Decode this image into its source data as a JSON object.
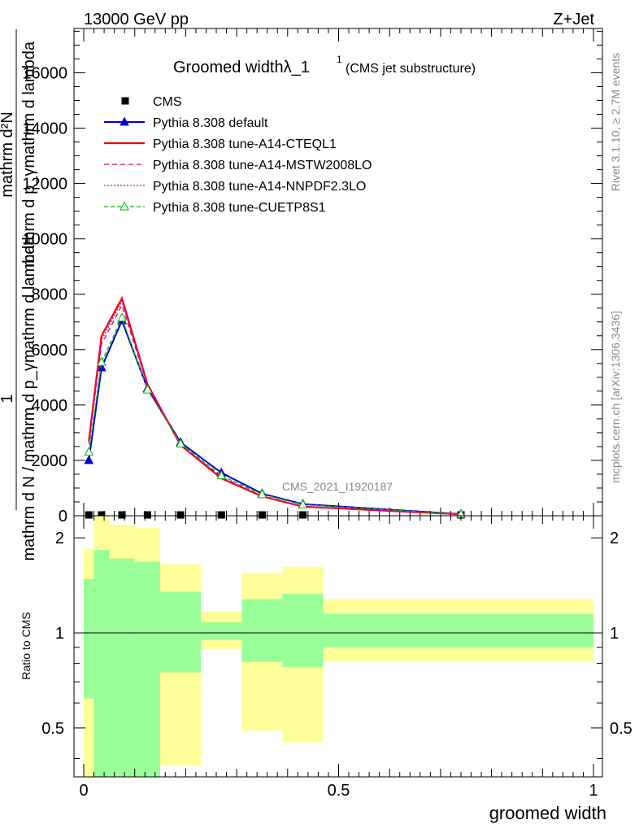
{
  "header": {
    "left_label": "13000 GeV pp",
    "right_label": "Z+Jet"
  },
  "side_labels": {
    "rivet": "Rivet 3.1.10, ≥ 2.7M events",
    "mcplots": "mcplots.cern.ch [arXiv:1306.3436]"
  },
  "chart_data": [
    {
      "type": "line",
      "title": "Groomed widthλ_1",
      "title_sup": "1",
      "subtitle": "(CMS jet substructure)",
      "watermark": "CMS_2021_I1920187",
      "ylabel_top": "mathrm d²N",
      "ylabel_mid": "mathrm d p_γmathrm d lambda",
      "ylabel_one": "1",
      "ylabel_bottom": "mathrm d N / mathrm d p_γmathrm d lambda",
      "xlim": [
        0,
        1
      ],
      "ylim": [
        0,
        17600
      ],
      "yticks": [
        0,
        2000,
        4000,
        6000,
        8000,
        10000,
        12000,
        14000,
        16000
      ],
      "ytick_labels": [
        "0",
        "2000",
        "4000",
        "6000",
        "8000",
        "10000",
        "12000",
        "14000",
        "16000"
      ],
      "legend_position": "top-left",
      "x": [
        0.01,
        0.035,
        0.075,
        0.125,
        0.19,
        0.27,
        0.35,
        0.43,
        0.74
      ],
      "series": [
        {
          "name": "CMS",
          "color": "#000000",
          "marker": "square",
          "dash": "none",
          "values": [
            20,
            20,
            20,
            20,
            20,
            20,
            20,
            20,
            20
          ]
        },
        {
          "name": "Pythia 8.308 default",
          "color": "#0000cc",
          "marker": "triangle-filled",
          "dash": "none",
          "values": [
            2000,
            5350,
            7050,
            4600,
            2650,
            1550,
            800,
            420,
            60
          ]
        },
        {
          "name": "Pythia 8.308 tune-A14-CTEQL1",
          "color": "#ee0000",
          "marker": "none",
          "dash": "none",
          "values": [
            2700,
            6500,
            7850,
            4750,
            2550,
            1350,
            700,
            330,
            50
          ]
        },
        {
          "name": "Pythia 8.308 tune-A14-MSTW2008LO",
          "color": "#ee0066",
          "marker": "none",
          "dash": "6,4",
          "values": [
            2600,
            6200,
            7600,
            4700,
            2580,
            1400,
            720,
            340,
            50
          ]
        },
        {
          "name": "Pythia 8.308 tune-A14-NNPDF2.3LO",
          "color": "#dd00aa",
          "marker": "none",
          "dash": "2,2",
          "values": [
            2650,
            6350,
            7750,
            4720,
            2560,
            1380,
            710,
            335,
            50
          ]
        },
        {
          "name": "Pythia 8.308 tune-CUETP8S1",
          "color": "#00bb00",
          "marker": "triangle-open",
          "dash": "5,3",
          "values": [
            2300,
            5550,
            7150,
            4550,
            2600,
            1450,
            770,
            400,
            55
          ]
        }
      ]
    },
    {
      "type": "area",
      "ylabel": "Ratio to CMS",
      "xlabel": "groomed width",
      "xlim": [
        0,
        1
      ],
      "ylim": [
        0.35,
        2.35
      ],
      "log_y": true,
      "xticks": [
        0,
        0.5,
        1
      ],
      "xtick_labels": [
        "0",
        "0.5",
        "1"
      ],
      "yticks": [
        0.5,
        1,
        2
      ],
      "ytick_labels": [
        "0.5",
        "1",
        "2"
      ],
      "reference_line": 1,
      "bands": [
        {
          "x0": 0.0,
          "x1": 0.02,
          "yellow": [
            0.35,
            1.85
          ],
          "green": [
            0.62,
            1.48
          ]
        },
        {
          "x0": 0.02,
          "x1": 0.05,
          "yellow": [
            0.35,
            2.35
          ],
          "green": [
            0.35,
            1.83
          ]
        },
        {
          "x0": 0.05,
          "x1": 0.1,
          "yellow": [
            0.35,
            2.2
          ],
          "green": [
            0.35,
            1.72
          ]
        },
        {
          "x0": 0.1,
          "x1": 0.15,
          "yellow": [
            0.35,
            2.15
          ],
          "green": [
            0.35,
            1.68
          ]
        },
        {
          "x0": 0.15,
          "x1": 0.23,
          "yellow": [
            0.38,
            1.65
          ],
          "green": [
            0.75,
            1.35
          ]
        },
        {
          "x0": 0.23,
          "x1": 0.31,
          "yellow": [
            0.89,
            1.17
          ],
          "green": [
            0.95,
            1.08
          ]
        },
        {
          "x0": 0.31,
          "x1": 0.39,
          "yellow": [
            0.49,
            1.55
          ],
          "green": [
            0.81,
            1.28
          ]
        },
        {
          "x0": 0.39,
          "x1": 0.47,
          "yellow": [
            0.45,
            1.62
          ],
          "green": [
            0.78,
            1.33
          ]
        },
        {
          "x0": 0.47,
          "x1": 1.0,
          "yellow": [
            0.81,
            1.28
          ],
          "green": [
            0.9,
            1.15
          ]
        }
      ]
    }
  ]
}
